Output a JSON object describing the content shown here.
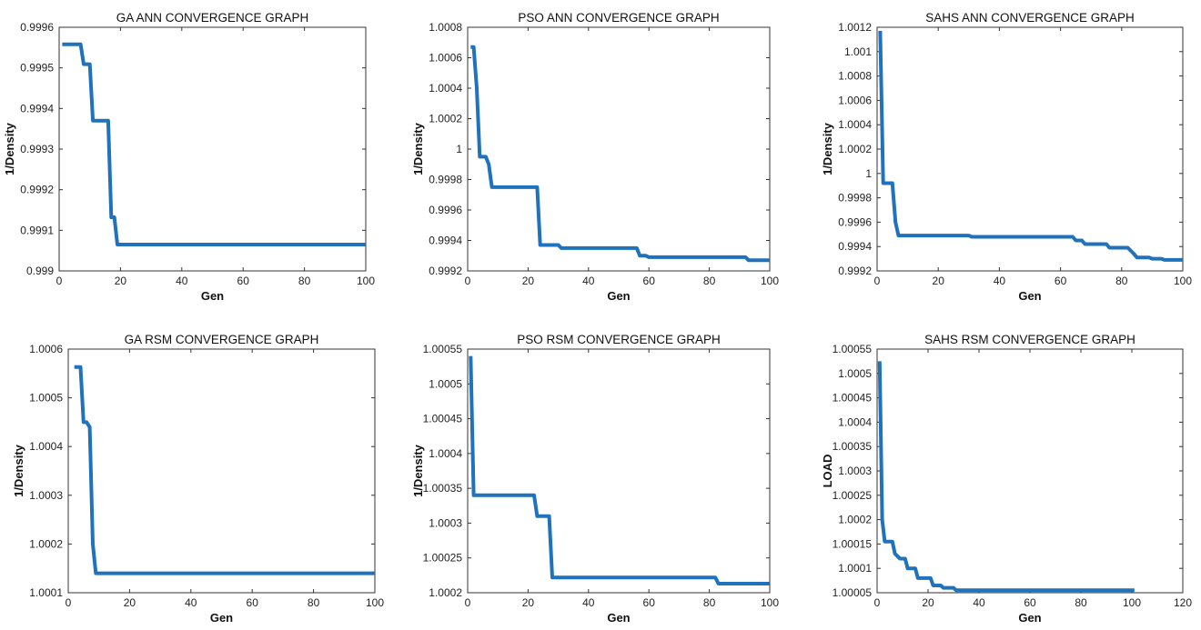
{
  "chart_data": [
    {
      "type": "line",
      "title": "GA ANN CONVERGENCE GRAPH",
      "xlabel": "Gen",
      "ylabel": "1/Density",
      "xlim": [
        0,
        100
      ],
      "ylim": [
        0.999,
        0.9996
      ],
      "xticks": [
        "0",
        "20",
        "40",
        "60",
        "80",
        "100"
      ],
      "yticks": [
        "0.999",
        "0.9991",
        "0.9992",
        "0.9993",
        "0.9994",
        "0.9995",
        "0.9996"
      ],
      "series": [
        {
          "color": "#1f72bb",
          "points": [
            [
              1,
              0.999558
            ],
            [
              7,
              0.999558
            ],
            [
              8,
              0.999509
            ],
            [
              10,
              0.999509
            ],
            [
              11,
              0.99937
            ],
            [
              16,
              0.99937
            ],
            [
              17,
              0.999132
            ],
            [
              18,
              0.999132
            ],
            [
              19,
              0.999065
            ],
            [
              100,
              0.999065
            ]
          ]
        }
      ]
    },
    {
      "type": "line",
      "title": "PSO ANN CONVERGENCE GRAPH",
      "xlabel": "Gen",
      "ylabel": "1/Density",
      "xlim": [
        0,
        100
      ],
      "ylim": [
        0.9992,
        1.0008
      ],
      "xticks": [
        "0",
        "20",
        "40",
        "60",
        "80",
        "100"
      ],
      "yticks": [
        "0.9992",
        "0.9994",
        "0.9996",
        "0.9998",
        "1",
        "1.0002",
        "1.0004",
        "1.0006",
        "1.0008"
      ],
      "series": [
        {
          "color": "#1f72bb",
          "points": [
            [
              1,
              1.00067
            ],
            [
              2,
              1.00067
            ],
            [
              3,
              1.0004
            ],
            [
              4,
              0.99995
            ],
            [
              6,
              0.99995
            ],
            [
              7,
              0.9999
            ],
            [
              8,
              0.99975
            ],
            [
              23,
              0.99975
            ],
            [
              24,
              0.99937
            ],
            [
              30,
              0.99937
            ],
            [
              31,
              0.99935
            ],
            [
              56,
              0.99935
            ],
            [
              57,
              0.9993
            ],
            [
              59,
              0.9993
            ],
            [
              60,
              0.99929
            ],
            [
              92,
              0.99929
            ],
            [
              93,
              0.99927
            ],
            [
              100,
              0.99927
            ]
          ]
        }
      ]
    },
    {
      "type": "line",
      "title": "SAHS ANN CONVERGENCE GRAPH",
      "xlabel": "Gen",
      "ylabel": "1/Density",
      "xlim": [
        0,
        100
      ],
      "ylim": [
        0.9992,
        1.0012
      ],
      "xticks": [
        "0",
        "20",
        "40",
        "60",
        "80",
        "100"
      ],
      "yticks": [
        "0.9992",
        "0.9994",
        "0.9996",
        "0.9998",
        "1",
        "1.0002",
        "1.0004",
        "1.0006",
        "1.0008",
        "1.001",
        "1.0012"
      ],
      "series": [
        {
          "color": "#1f72bb",
          "points": [
            [
              1,
              1.00117
            ],
            [
              2,
              0.99992
            ],
            [
              5,
              0.99992
            ],
            [
              6,
              0.9996
            ],
            [
              7,
              0.99949
            ],
            [
              30,
              0.99949
            ],
            [
              31,
              0.99948
            ],
            [
              64,
              0.99948
            ],
            [
              65,
              0.99945
            ],
            [
              67,
              0.99945
            ],
            [
              68,
              0.99942
            ],
            [
              75,
              0.99942
            ],
            [
              76,
              0.99939
            ],
            [
              82,
              0.99939
            ],
            [
              84,
              0.99934
            ],
            [
              85,
              0.99931
            ],
            [
              89,
              0.99931
            ],
            [
              90,
              0.9993
            ],
            [
              93,
              0.9993
            ],
            [
              94,
              0.99929
            ],
            [
              100,
              0.99929
            ]
          ]
        }
      ]
    },
    {
      "type": "line",
      "title": "GA RSM CONVERGENCE GRAPH",
      "xlabel": "Gen",
      "ylabel": "1/Density",
      "xlim": [
        0,
        100
      ],
      "ylim": [
        1.0001,
        1.0006
      ],
      "xticks": [
        "0",
        "20",
        "40",
        "60",
        "80",
        "100"
      ],
      "yticks": [
        "1.0001",
        "1.0002",
        "1.0003",
        "1.0004",
        "1.0005",
        "1.0006"
      ],
      "series": [
        {
          "color": "#1f72bb",
          "points": [
            [
              2,
              1.000563
            ],
            [
              4,
              1.000563
            ],
            [
              5,
              1.00045
            ],
            [
              6,
              1.00045
            ],
            [
              7,
              1.00044
            ],
            [
              8,
              1.0002
            ],
            [
              9,
              1.00014
            ],
            [
              100,
              1.00014
            ]
          ]
        }
      ]
    },
    {
      "type": "line",
      "title": "PSO RSM CONVERGENCE GRAPH",
      "xlabel": "Gen",
      "ylabel": "1/Density",
      "xlim": [
        0,
        100
      ],
      "ylim": [
        1.0002,
        1.00055
      ],
      "xticks": [
        "0",
        "20",
        "40",
        "60",
        "80",
        "100"
      ],
      "yticks": [
        "1.0002",
        "1.00025",
        "1.0003",
        "1.00035",
        "1.0004",
        "1.00045",
        "1.0005",
        "1.00055"
      ],
      "series": [
        {
          "color": "#1f72bb",
          "points": [
            [
              1,
              1.00054
            ],
            [
              2,
              1.00034
            ],
            [
              22,
              1.00034
            ],
            [
              23,
              1.00031
            ],
            [
              27,
              1.00031
            ],
            [
              28,
              1.000222
            ],
            [
              82,
              1.000222
            ],
            [
              83,
              1.000213
            ],
            [
              100,
              1.000213
            ]
          ]
        }
      ]
    },
    {
      "type": "line",
      "title": "SAHS RSM CONVERGENCE GRAPH",
      "xlabel": "Gen",
      "ylabel": "LOAD",
      "xlim": [
        0,
        120
      ],
      "ylim": [
        1.00005,
        1.00055
      ],
      "xticks": [
        "0",
        "20",
        "40",
        "60",
        "80",
        "100",
        "120"
      ],
      "yticks": [
        "1.00005",
        "1.0001",
        "1.00015",
        "1.0002",
        "1.00025",
        "1.0003",
        "1.00035",
        "1.0004",
        "1.00045",
        "1.0005",
        "1.00055"
      ],
      "series": [
        {
          "color": "#1f72bb",
          "points": [
            [
              1,
              1.000525
            ],
            [
              2,
              1.0002
            ],
            [
              3,
              1.000155
            ],
            [
              6,
              1.000155
            ],
            [
              7,
              1.00013
            ],
            [
              9,
              1.00012
            ],
            [
              11,
              1.00012
            ],
            [
              12,
              1.0001
            ],
            [
              15,
              1.0001
            ],
            [
              16,
              1.00008
            ],
            [
              21,
              1.00008
            ],
            [
              22,
              1.000065
            ],
            [
              25,
              1.000065
            ],
            [
              26,
              1.00006
            ],
            [
              30,
              1.00006
            ],
            [
              31,
              1.000055
            ],
            [
              101,
              1.000055
            ]
          ]
        }
      ]
    }
  ]
}
